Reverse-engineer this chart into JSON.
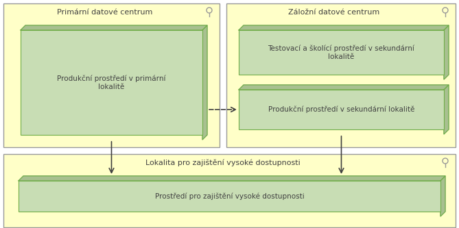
{
  "bg_outer": "#ffffff",
  "bg_yellow": "#ffffc8",
  "box_fill": "#c8ddb4",
  "box_fill_dark": "#a8c090",
  "box_edge": "#70ad47",
  "box_edge_dark": "#5a8a35",
  "container_edge": "#999999",
  "text_color": "#404040",
  "arrow_color": "#404040",
  "primary_label": "Primární datové centrum",
  "secondary_label": "Záložní datové centrum",
  "bottom_label": "Lokalita pro zajištění vysoké dostupnosti",
  "box1_text": "Produkční prostředí v primární\nlokalitě",
  "box2_text": "Testovací a školící prostředí v sekundární\nlokalitě",
  "box3_text": "Produkční prostředí v sekundární lokalitě",
  "box4_text": "Prostředí pro zajištění vysoké dostupnosti",
  "font_size_label": 8.0,
  "font_size_box": 7.5,
  "fig_width": 6.69,
  "fig_height": 3.33,
  "dpi": 100
}
